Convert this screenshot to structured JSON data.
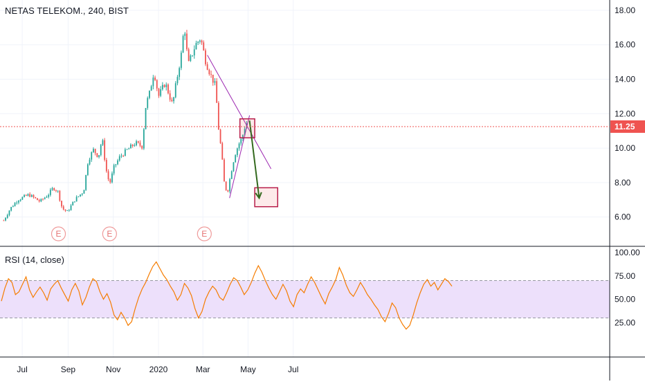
{
  "chart_data": [
    {
      "type": "candlestick",
      "title": "NETAS TELEKOM., 240, BIST",
      "y_ticks": [
        "18.00",
        "16.00",
        "14.00",
        "12.00",
        "10.00",
        "8.00",
        "6.00"
      ],
      "ylim": [
        4.3,
        18.6
      ],
      "x_ticks": [
        "Jul",
        "Sep",
        "Nov",
        "2020",
        "Mar",
        "May",
        "Jul"
      ],
      "last_price": "11.25",
      "earnings_marks": [
        "E",
        "E",
        "E"
      ],
      "colors": {
        "up": "#26a69a",
        "down": "#ef5350",
        "trendline": "#9c27b0",
        "arrow": "#33691e",
        "box": "#b71c4a",
        "price_line": "#ef5350"
      },
      "price_path": [
        [
          "Jun 6",
          5.8
        ],
        [
          "Jun 15",
          6.5
        ],
        [
          "Jun 25",
          7.0
        ],
        [
          "Jul 10",
          7.3
        ],
        [
          "Jul 25",
          6.9
        ],
        [
          "Aug 5",
          7.3
        ],
        [
          "Aug 12",
          7.7
        ],
        [
          "Aug 18",
          7.5
        ],
        [
          "Aug 24",
          6.5
        ],
        [
          "Aug 31",
          6.3
        ],
        [
          "Sep 10",
          7.0
        ],
        [
          "Sep 22",
          7.5
        ],
        [
          "Sep 28",
          9.3
        ],
        [
          "Oct 5",
          9.9
        ],
        [
          "Oct 12",
          9.5
        ],
        [
          "Oct 17",
          10.6
        ],
        [
          "Oct 22",
          8.8
        ],
        [
          "Oct 27",
          7.9
        ],
        [
          "Nov 2",
          8.9
        ],
        [
          "Nov 10",
          9.5
        ],
        [
          "Nov 20",
          9.9
        ],
        [
          "Dec 1",
          10.3
        ],
        [
          "Dec 10",
          10.1
        ],
        [
          "Dec 15",
          12.5
        ],
        [
          "Dec 20",
          13.2
        ],
        [
          "Dec 26",
          14.5
        ],
        [
          "Jan 1",
          13.0
        ],
        [
          "Jan 10",
          13.8
        ],
        [
          "Jan 20",
          12.5
        ],
        [
          "Jan 25",
          13.8
        ],
        [
          "Feb 1",
          15.5
        ],
        [
          "Feb 5",
          17.2
        ],
        [
          "Feb 10",
          14.8
        ],
        [
          "Feb 20",
          16.0
        ],
        [
          "Feb 27",
          16.4
        ],
        [
          "Mar 5",
          15.0
        ],
        [
          "Mar 12",
          14.2
        ],
        [
          "Mar 18",
          13.6
        ],
        [
          "Mar 22",
          11.2
        ],
        [
          "Mar 26",
          9.8
        ],
        [
          "Mar 30",
          7.9
        ],
        [
          "Apr 3",
          7.4
        ],
        [
          "Apr 8",
          8.6
        ],
        [
          "Apr 13",
          9.6
        ],
        [
          "Apr 18",
          10.2
        ],
        [
          "Apr 23",
          10.6
        ],
        [
          "Apr 27",
          11.3
        ],
        [
          "Apr 30",
          11.5
        ]
      ],
      "drawings": {
        "trendline_upper": [
          [
            "Mar 7",
            15.4
          ],
          [
            "Jun 1",
            8.8
          ]
        ],
        "trendline_lower": [
          [
            "Apr 6",
            7.1
          ],
          [
            "May 3",
            11.9
          ]
        ],
        "target_box_top": {
          "x": [
            "Apr 20",
            "May 10"
          ],
          "y": [
            10.6,
            11.7
          ]
        },
        "target_box_bottom": {
          "x": [
            "May 10",
            "Jun 10"
          ],
          "y": [
            6.6,
            7.7
          ]
        },
        "arrow": [
          [
            "May 3",
            11.6
          ],
          [
            "May 16",
            7.1
          ]
        ]
      }
    },
    {
      "type": "line",
      "title": "RSI (14, close)",
      "y_ticks": [
        "100.00",
        "75.00",
        "50.00",
        "25.00"
      ],
      "ylim": [
        0,
        100
      ],
      "bands": [
        30,
        70
      ],
      "line_color": "#f57c00",
      "band_fill": "#ede0fb",
      "values": [
        48,
        62,
        72,
        68,
        55,
        58,
        66,
        74,
        60,
        52,
        58,
        63,
        57,
        49,
        61,
        66,
        70,
        62,
        55,
        48,
        60,
        67,
        59,
        44,
        52,
        63,
        72,
        69,
        58,
        50,
        56,
        47,
        33,
        28,
        36,
        30,
        22,
        26,
        40,
        52,
        61,
        68,
        77,
        85,
        90,
        83,
        76,
        71,
        64,
        58,
        49,
        55,
        67,
        62,
        54,
        40,
        30,
        37,
        50,
        58,
        64,
        60,
        52,
        49,
        57,
        66,
        73,
        70,
        63,
        55,
        60,
        68,
        78,
        86,
        79,
        70,
        62,
        55,
        50,
        58,
        66,
        59,
        48,
        42,
        55,
        61,
        57,
        66,
        74,
        68,
        60,
        52,
        45,
        56,
        63,
        71,
        84,
        76,
        65,
        57,
        53,
        60,
        68,
        62,
        55,
        50,
        44,
        39,
        31,
        26,
        35,
        46,
        41,
        30,
        23,
        18,
        22,
        33,
        46,
        57,
        66,
        71,
        64,
        68,
        60,
        66,
        72,
        69,
        64
      ]
    }
  ]
}
